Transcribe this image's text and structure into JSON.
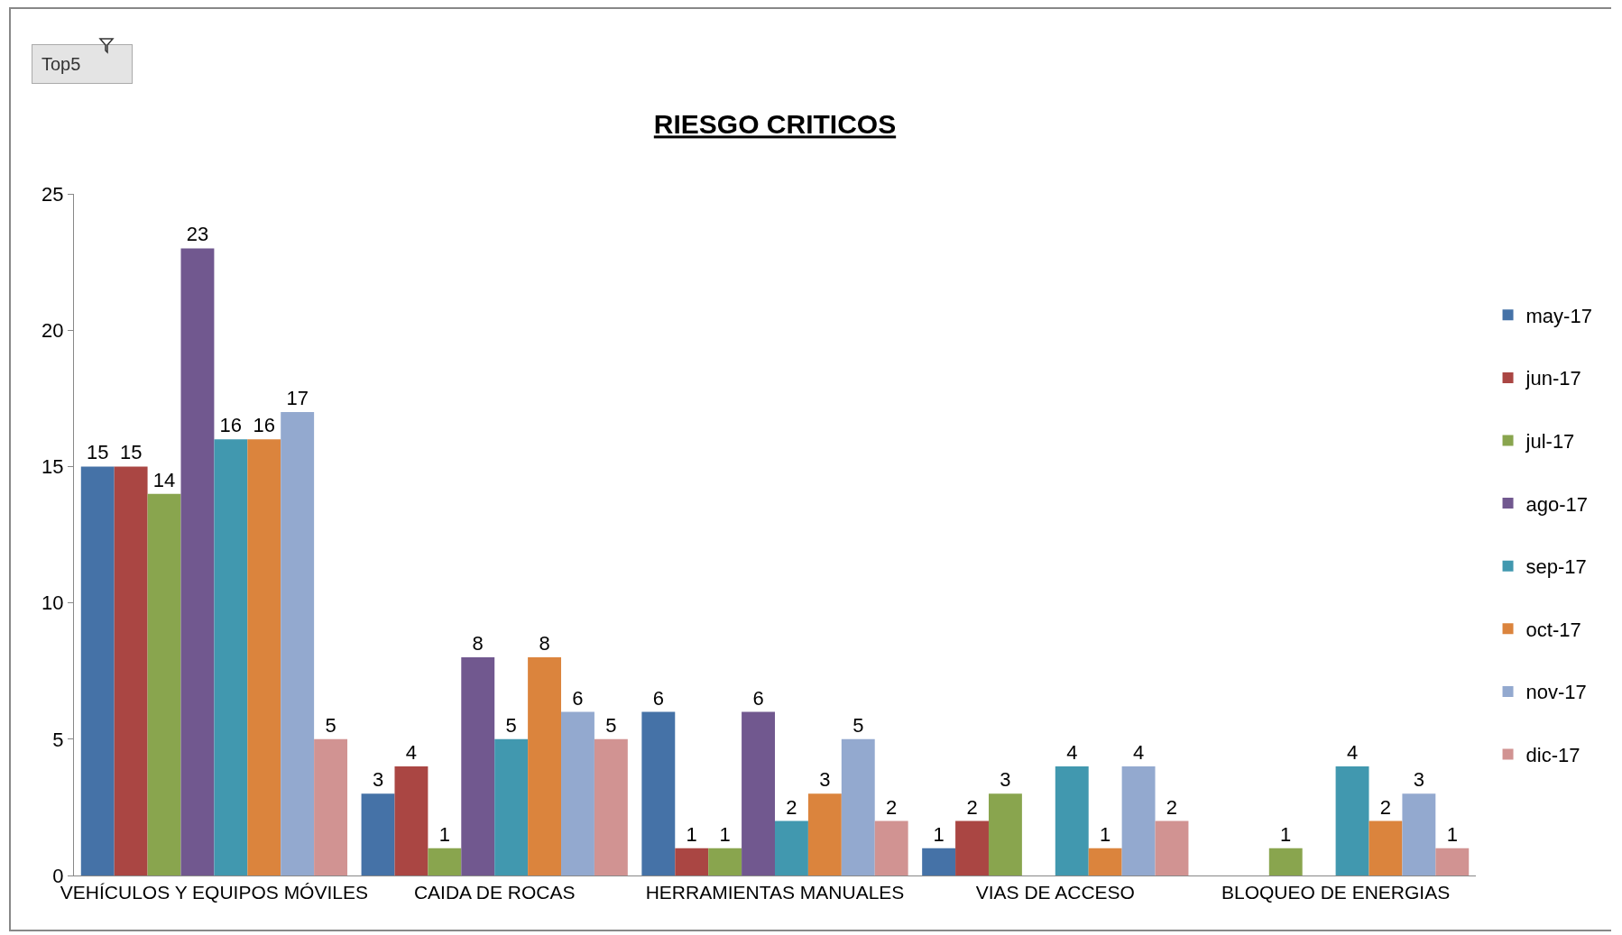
{
  "chart_data": {
    "type": "bar",
    "title": "RIESGO CRITICOS",
    "categories": [
      "VEHÍCULOS Y EQUIPOS MÓVILES",
      "CAIDA DE ROCAS",
      "HERRAMIENTAS MANUALES",
      "VIAS DE ACCESO",
      "BLOQUEO DE ENERGIAS"
    ],
    "series": [
      {
        "name": "may-17",
        "color": "#4572a7",
        "values": [
          15,
          3,
          6,
          1,
          null
        ]
      },
      {
        "name": "jun-17",
        "color": "#aa4643",
        "values": [
          15,
          4,
          1,
          2,
          null
        ]
      },
      {
        "name": "jul-17",
        "color": "#89a54e",
        "values": [
          14,
          1,
          1,
          3,
          1
        ]
      },
      {
        "name": "ago-17",
        "color": "#71588f",
        "values": [
          23,
          8,
          6,
          null,
          null
        ]
      },
      {
        "name": "sep-17",
        "color": "#4198af",
        "values": [
          16,
          5,
          2,
          4,
          4
        ]
      },
      {
        "name": "oct-17",
        "color": "#db843d",
        "values": [
          16,
          8,
          3,
          1,
          2
        ]
      },
      {
        "name": "nov-17",
        "color": "#93a9cf",
        "values": [
          17,
          6,
          5,
          4,
          3
        ]
      },
      {
        "name": "dic-17",
        "color": "#d19392",
        "values": [
          5,
          5,
          2,
          2,
          1
        ]
      }
    ],
    "ylim": [
      0,
      25
    ],
    "yticks": [
      0,
      5,
      10,
      15,
      20,
      25
    ],
    "grid": false,
    "legend": "right",
    "data_labels": true,
    "annotations": [
      "Top5"
    ]
  }
}
